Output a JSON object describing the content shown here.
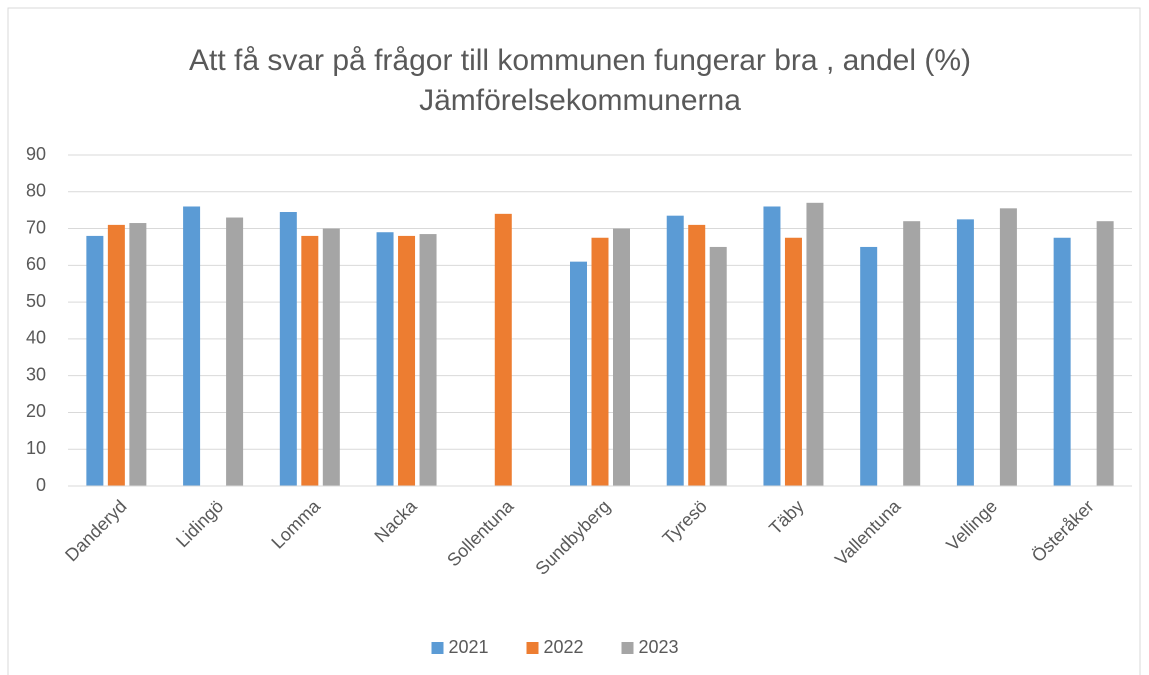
{
  "chart_data": {
    "type": "bar",
    "title": "Att få svar på frågor till kommunen fungerar bra , andel (%)",
    "subtitle": "Jämförelsekommunerna",
    "categories": [
      "Danderyd",
      "Lidingö",
      "Lomma",
      "Nacka",
      "Sollentuna",
      "Sundbyberg",
      "Tyresö",
      "Täby",
      "Vallentuna",
      "Vellinge",
      "Österåker"
    ],
    "series": [
      {
        "name": "2021",
        "color": "#5b9bd5",
        "values": [
          68,
          76,
          74.5,
          69,
          null,
          61,
          73.5,
          76,
          65,
          72.5,
          67.5
        ]
      },
      {
        "name": "2022",
        "color": "#ed7d31",
        "values": [
          71,
          null,
          68,
          68,
          74,
          67.5,
          71,
          67.5,
          null,
          null,
          null
        ]
      },
      {
        "name": "2023",
        "color": "#a5a5a5",
        "values": [
          71.5,
          73,
          70,
          68.5,
          null,
          70,
          65,
          77,
          72,
          75.5,
          72
        ]
      }
    ],
    "ylim": [
      0,
      90
    ],
    "yticks": [
      0,
      10,
      20,
      30,
      40,
      50,
      60,
      70,
      80,
      90
    ],
    "grid": true,
    "legend": "bottom"
  }
}
